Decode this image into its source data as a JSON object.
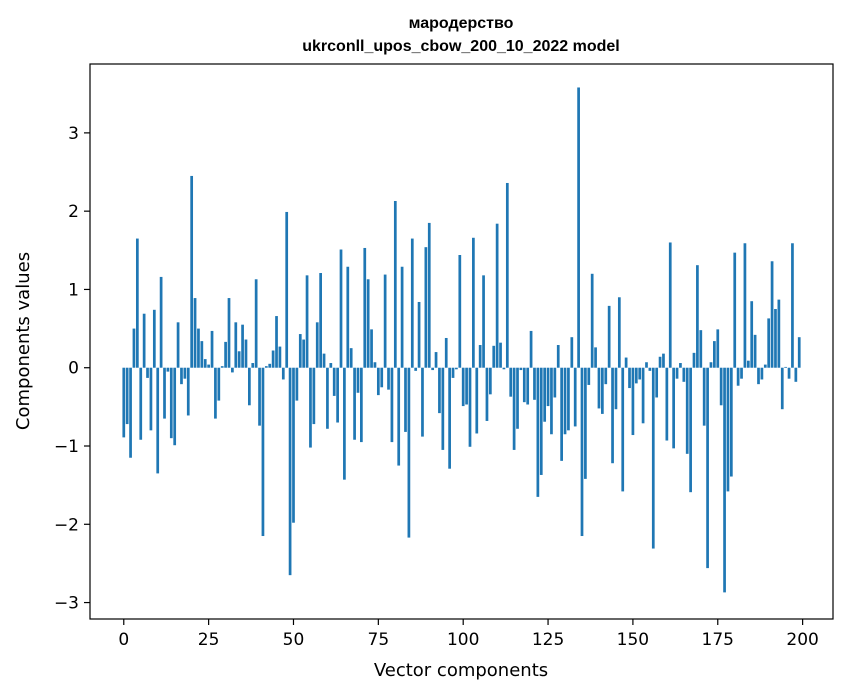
{
  "chart_data": {
    "type": "bar",
    "title": "мародерство",
    "subtitle": "ukrconll_upos_cbow_200_10_2022 model",
    "xlabel": "Vector components",
    "ylabel": "Components values",
    "xlim": [
      -9.95,
      208.95
    ],
    "ylim": [
      -3.21,
      3.88
    ],
    "xticks": [
      0,
      25,
      50,
      75,
      100,
      125,
      150,
      175,
      200
    ],
    "yticks": [
      -3,
      -2,
      -1,
      0,
      1,
      2,
      3
    ],
    "ytick_labels": [
      "−3",
      "−2",
      "−1",
      "0",
      "1",
      "2",
      "3"
    ],
    "grid": false,
    "bar_color": "#1f77b4",
    "x": [
      0,
      1,
      2,
      3,
      4,
      5,
      6,
      7,
      8,
      9,
      10,
      11,
      12,
      13,
      14,
      15,
      16,
      17,
      18,
      19,
      20,
      21,
      22,
      23,
      24,
      25,
      26,
      27,
      28,
      29,
      30,
      31,
      32,
      33,
      34,
      35,
      36,
      37,
      38,
      39,
      40,
      41,
      42,
      43,
      44,
      45,
      46,
      47,
      48,
      49,
      50,
      51,
      52,
      53,
      54,
      55,
      56,
      57,
      58,
      59,
      60,
      61,
      62,
      63,
      64,
      65,
      66,
      67,
      68,
      69,
      70,
      71,
      72,
      73,
      74,
      75,
      76,
      77,
      78,
      79,
      80,
      81,
      82,
      83,
      84,
      85,
      86,
      87,
      88,
      89,
      90,
      91,
      92,
      93,
      94,
      95,
      96,
      97,
      98,
      99,
      100,
      101,
      102,
      103,
      104,
      105,
      106,
      107,
      108,
      109,
      110,
      111,
      112,
      113,
      114,
      115,
      116,
      117,
      118,
      119,
      120,
      121,
      122,
      123,
      124,
      125,
      126,
      127,
      128,
      129,
      130,
      131,
      132,
      133,
      134,
      135,
      136,
      137,
      138,
      139,
      140,
      141,
      142,
      143,
      144,
      145,
      146,
      147,
      148,
      149,
      150,
      151,
      152,
      153,
      154,
      155,
      156,
      157,
      158,
      159,
      160,
      161,
      162,
      163,
      164,
      165,
      166,
      167,
      168,
      169,
      170,
      171,
      172,
      173,
      174,
      175,
      176,
      177,
      178,
      179,
      180,
      181,
      182,
      183,
      184,
      185,
      186,
      187,
      188,
      189,
      190,
      191,
      192,
      193,
      194,
      195,
      196,
      197,
      198,
      199
    ],
    "values": [
      -0.89,
      -0.72,
      -1.15,
      0.5,
      1.65,
      -0.92,
      0.69,
      -0.13,
      -0.8,
      0.74,
      -1.35,
      1.16,
      -0.65,
      -0.05,
      -0.9,
      -0.99,
      0.58,
      -0.21,
      -0.14,
      -0.61,
      2.45,
      0.89,
      0.5,
      0.34,
      0.11,
      0.04,
      0.47,
      -0.65,
      -0.42,
      0.02,
      0.33,
      0.89,
      -0.06,
      0.58,
      0.21,
      0.55,
      0.36,
      -0.48,
      0.06,
      1.13,
      -0.74,
      -2.15,
      0.02,
      0.05,
      0.22,
      0.66,
      0.27,
      -0.15,
      1.99,
      -2.65,
      -1.98,
      -0.42,
      0.43,
      0.36,
      1.18,
      -1.02,
      -0.72,
      0.58,
      1.21,
      0.18,
      -0.78,
      0.06,
      -0.36,
      -0.7,
      1.51,
      -1.43,
      1.29,
      0.25,
      -0.92,
      -0.32,
      -0.95,
      1.53,
      1.13,
      0.49,
      0.07,
      -0.35,
      -0.25,
      1.19,
      -0.28,
      -0.95,
      2.13,
      -1.25,
      1.29,
      -0.82,
      -2.17,
      1.65,
      -0.04,
      0.84,
      -0.88,
      1.54,
      1.85,
      -0.03,
      0.2,
      -0.58,
      -1.05,
      0.38,
      -1.29,
      -0.13,
      -0.02,
      1.44,
      -0.49,
      -0.47,
      -1.01,
      1.66,
      -0.84,
      0.29,
      1.18,
      -0.68,
      -0.34,
      0.28,
      1.84,
      0.32,
      -0.02,
      2.36,
      -0.37,
      -1.05,
      -0.78,
      -0.03,
      -0.44,
      -0.47,
      0.47,
      -0.41,
      -1.65,
      -1.37,
      -0.69,
      -0.49,
      -0.85,
      -0.38,
      0.29,
      -1.19,
      -0.85,
      -0.8,
      0.39,
      -0.75,
      3.58,
      -2.15,
      -1.42,
      -0.22,
      1.2,
      0.26,
      -0.52,
      -0.59,
      -0.21,
      0.79,
      -1.22,
      -0.53,
      0.9,
      -1.58,
      0.13,
      -0.26,
      -0.86,
      -0.2,
      -0.15,
      -0.71,
      0.07,
      -0.04,
      -2.31,
      -0.38,
      0.14,
      0.18,
      -0.93,
      1.6,
      -1.03,
      -0.14,
      0.06,
      -0.18,
      -1.1,
      -1.59,
      0.19,
      1.31,
      0.48,
      -0.74,
      -2.56,
      0.07,
      0.34,
      0.49,
      -0.48,
      -2.87,
      -1.58,
      -1.39,
      1.47,
      -0.23,
      -0.14,
      1.59,
      0.09,
      0.85,
      0.42,
      -0.21,
      -0.15,
      0.04,
      0.63,
      1.36,
      0.75,
      0.87,
      -0.53,
      0.01,
      -0.14,
      1.59,
      -0.18,
      0.39
    ]
  }
}
